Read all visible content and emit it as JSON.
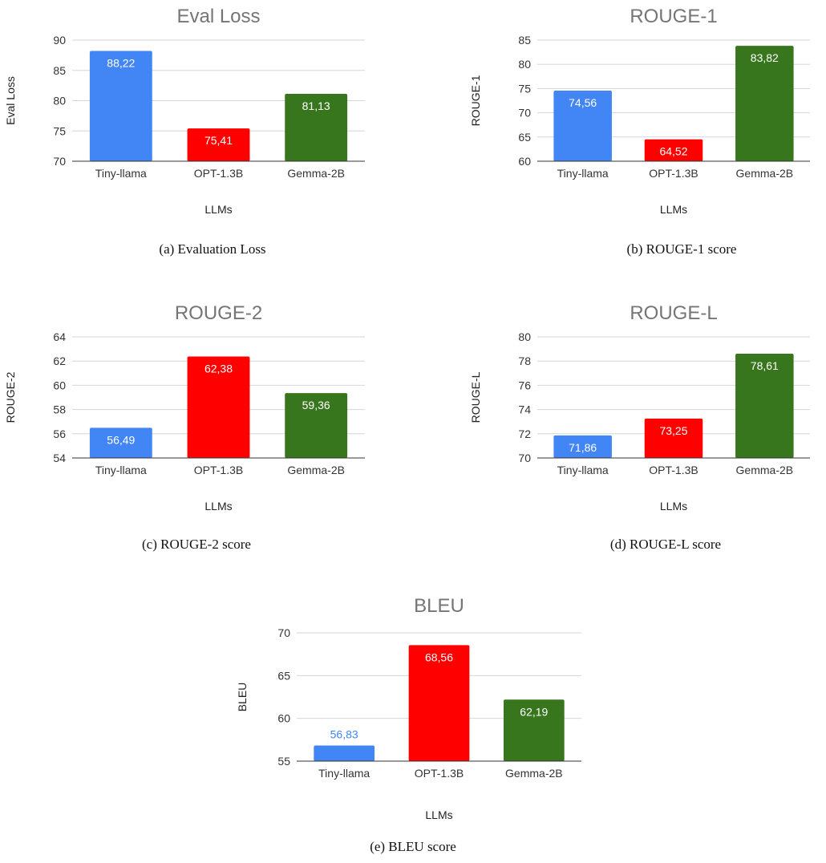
{
  "chart_data": [
    {
      "type": "bar",
      "title": "Eval Loss",
      "xlabel": "LLMs",
      "ylabel": "Eval Loss",
      "categories": [
        "Tiny-llama",
        "OPT-1.3B",
        "Gemma-2B"
      ],
      "values": [
        88.22,
        75.41,
        81.13
      ],
      "value_labels": [
        "88,22",
        "75,41",
        "81,13"
      ],
      "colors": [
        "#4285f4",
        "#ff0000",
        "#38761d"
      ],
      "ylim": [
        70,
        90
      ],
      "yticks": [
        70,
        75,
        80,
        85,
        90
      ],
      "grid": true,
      "caption": "(a) Evaluation Loss"
    },
    {
      "type": "bar",
      "title": "ROUGE-1",
      "xlabel": "LLMs",
      "ylabel": "ROUGE-1",
      "categories": [
        "Tiny-llama",
        "OPT-1.3B",
        "Gemma-2B"
      ],
      "values": [
        74.56,
        64.52,
        83.82
      ],
      "value_labels": [
        "74,56",
        "64,52",
        "83,82"
      ],
      "colors": [
        "#4285f4",
        "#ff0000",
        "#38761d"
      ],
      "ylim": [
        60,
        85
      ],
      "yticks": [
        60,
        65,
        70,
        75,
        80,
        85
      ],
      "grid": true,
      "caption": "(b) ROUGE-1 score"
    },
    {
      "type": "bar",
      "title": "ROUGE-2",
      "xlabel": "LLMs",
      "ylabel": "ROUGE-2",
      "categories": [
        "Tiny-llama",
        "OPT-1.3B",
        "Gemma-2B"
      ],
      "values": [
        56.49,
        62.38,
        59.36
      ],
      "value_labels": [
        "56,49",
        "62,38",
        "59,36"
      ],
      "colors": [
        "#4285f4",
        "#ff0000",
        "#38761d"
      ],
      "ylim": [
        54,
        64
      ],
      "yticks": [
        54,
        56,
        58,
        60,
        62,
        64
      ],
      "grid": true,
      "caption": "(c) ROUGE-2 score"
    },
    {
      "type": "bar",
      "title": "ROUGE-L",
      "xlabel": "LLMs",
      "ylabel": "ROUGE-L",
      "categories": [
        "Tiny-llama",
        "OPT-1.3B",
        "Gemma-2B"
      ],
      "values": [
        71.86,
        73.25,
        78.61
      ],
      "value_labels": [
        "71,86",
        "73,25",
        "78,61"
      ],
      "colors": [
        "#4285f4",
        "#ff0000",
        "#38761d"
      ],
      "ylim": [
        70,
        80
      ],
      "yticks": [
        70,
        72,
        74,
        76,
        78,
        80
      ],
      "grid": true,
      "caption": "(d) ROUGE-L score"
    },
    {
      "type": "bar",
      "title": "BLEU",
      "xlabel": "LLMs",
      "ylabel": "BLEU",
      "categories": [
        "Tiny-llama",
        "OPT-1.3B",
        "Gemma-2B"
      ],
      "values": [
        56.83,
        68.56,
        62.19
      ],
      "value_labels": [
        "56,83",
        "68,56",
        "62,19"
      ],
      "colors": [
        "#4285f4",
        "#ff0000",
        "#38761d"
      ],
      "ylim": [
        55,
        70
      ],
      "yticks": [
        55,
        60,
        65,
        70
      ],
      "grid": true,
      "caption": "(e) BLEU score"
    }
  ]
}
